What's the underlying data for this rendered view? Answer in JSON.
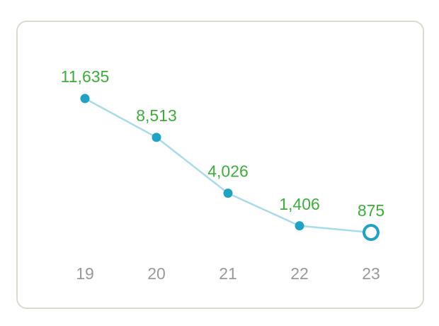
{
  "chart_data": {
    "type": "line",
    "categories": [
      "19",
      "20",
      "21",
      "22",
      "23"
    ],
    "values": [
      11635,
      8513,
      4026,
      1406,
      875
    ],
    "value_labels": [
      "11,635",
      "8,513",
      "4,026",
      "1,406",
      "875"
    ],
    "color": "#1ea3c4",
    "line_color": "#a9dcea",
    "label_color": "#3cae3a"
  }
}
